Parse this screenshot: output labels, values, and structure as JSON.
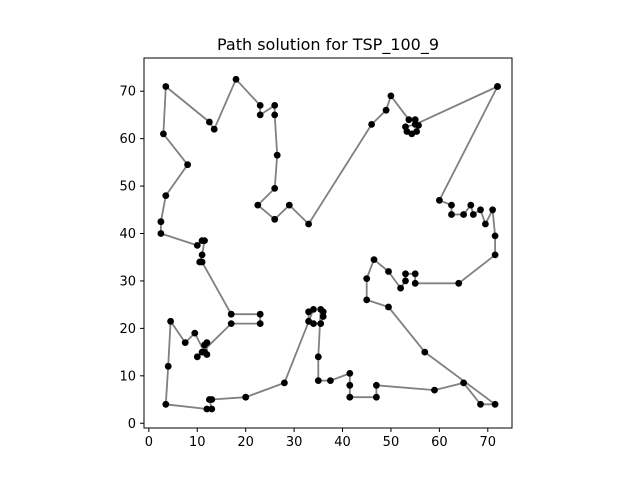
{
  "chart_data": {
    "type": "line",
    "title": "Path solution for TSP_100_9",
    "xlabel": "",
    "ylabel": "",
    "xlim": [
      -1,
      75
    ],
    "ylim": [
      -1,
      77
    ],
    "xticks": [
      0,
      10,
      20,
      30,
      40,
      50,
      60,
      70
    ],
    "yticks": [
      0,
      10,
      20,
      30,
      40,
      50,
      60,
      70
    ],
    "grid": false,
    "legend": "none",
    "colors": {
      "path": "#808080",
      "points": "#000000"
    },
    "series": [
      {
        "points": [
          [
            72,
            71
          ],
          [
            55,
            63
          ],
          [
            53,
            62.5
          ],
          [
            53.3,
            61.5
          ],
          [
            54.3,
            61
          ],
          [
            55.3,
            61.5
          ],
          [
            55.7,
            62.8
          ],
          [
            55,
            64
          ],
          [
            53.7,
            64
          ],
          [
            50,
            69
          ],
          [
            49,
            66
          ],
          [
            46,
            63
          ],
          [
            33,
            42
          ],
          [
            29,
            46
          ],
          [
            26,
            43
          ],
          [
            22.5,
            46
          ],
          [
            26,
            49.5
          ],
          [
            26.5,
            56.5
          ],
          [
            26,
            65
          ],
          [
            26,
            67
          ],
          [
            23,
            65
          ],
          [
            23,
            67
          ],
          [
            18,
            72.5
          ],
          [
            13.5,
            62
          ],
          [
            12.5,
            63.5
          ],
          [
            3.5,
            71
          ],
          [
            3,
            61
          ],
          [
            8,
            54.5
          ],
          [
            3.5,
            48
          ],
          [
            2.5,
            42.5
          ],
          [
            2.5,
            40
          ],
          [
            10,
            37.5
          ],
          [
            11,
            38.5
          ],
          [
            11.5,
            38.5
          ],
          [
            11,
            35.5
          ],
          [
            10.5,
            34
          ],
          [
            11,
            34
          ],
          [
            17,
            23
          ],
          [
            23,
            23
          ],
          [
            23,
            21
          ],
          [
            17,
            21
          ],
          [
            10,
            14
          ],
          [
            11,
            15
          ],
          [
            11.5,
            16.5
          ],
          [
            12,
            17
          ],
          [
            12,
            14.5
          ],
          [
            11.5,
            15
          ],
          [
            9.5,
            19
          ],
          [
            7.5,
            17
          ],
          [
            4.5,
            21.5
          ],
          [
            4,
            12
          ],
          [
            3.5,
            4
          ],
          [
            12,
            3
          ],
          [
            13,
            3
          ],
          [
            12.5,
            5
          ],
          [
            13,
            5
          ],
          [
            20,
            5.5
          ],
          [
            28,
            8.5
          ],
          [
            34,
            24
          ],
          [
            33,
            23.5
          ],
          [
            33,
            21.5
          ],
          [
            34,
            21
          ],
          [
            35.5,
            21
          ],
          [
            36,
            22.5
          ],
          [
            36,
            23.5
          ],
          [
            35.5,
            24
          ],
          [
            35,
            14
          ],
          [
            35,
            9
          ],
          [
            37.5,
            9
          ],
          [
            41.5,
            10.5
          ],
          [
            41.5,
            8
          ],
          [
            41.5,
            5.5
          ],
          [
            47,
            5.5
          ],
          [
            47,
            8
          ],
          [
            59,
            7
          ],
          [
            65,
            8.5
          ],
          [
            68.5,
            4
          ],
          [
            71.5,
            4
          ],
          [
            57,
            15
          ],
          [
            49.5,
            24.5
          ],
          [
            45,
            26
          ],
          [
            45,
            30.5
          ],
          [
            46.5,
            34.5
          ],
          [
            49.5,
            32
          ],
          [
            52,
            28.5
          ],
          [
            53,
            30
          ],
          [
            53,
            31.5
          ],
          [
            55,
            31.5
          ],
          [
            55,
            29.5
          ],
          [
            64,
            29.5
          ],
          [
            71.5,
            35.5
          ],
          [
            71.5,
            39.5
          ],
          [
            71,
            45
          ],
          [
            69.5,
            42
          ],
          [
            68.5,
            45
          ],
          [
            67,
            44
          ],
          [
            66.5,
            46
          ],
          [
            65,
            44
          ],
          [
            62.5,
            44
          ],
          [
            62.5,
            46
          ],
          [
            60,
            47
          ],
          [
            72,
            71
          ]
        ]
      }
    ]
  }
}
